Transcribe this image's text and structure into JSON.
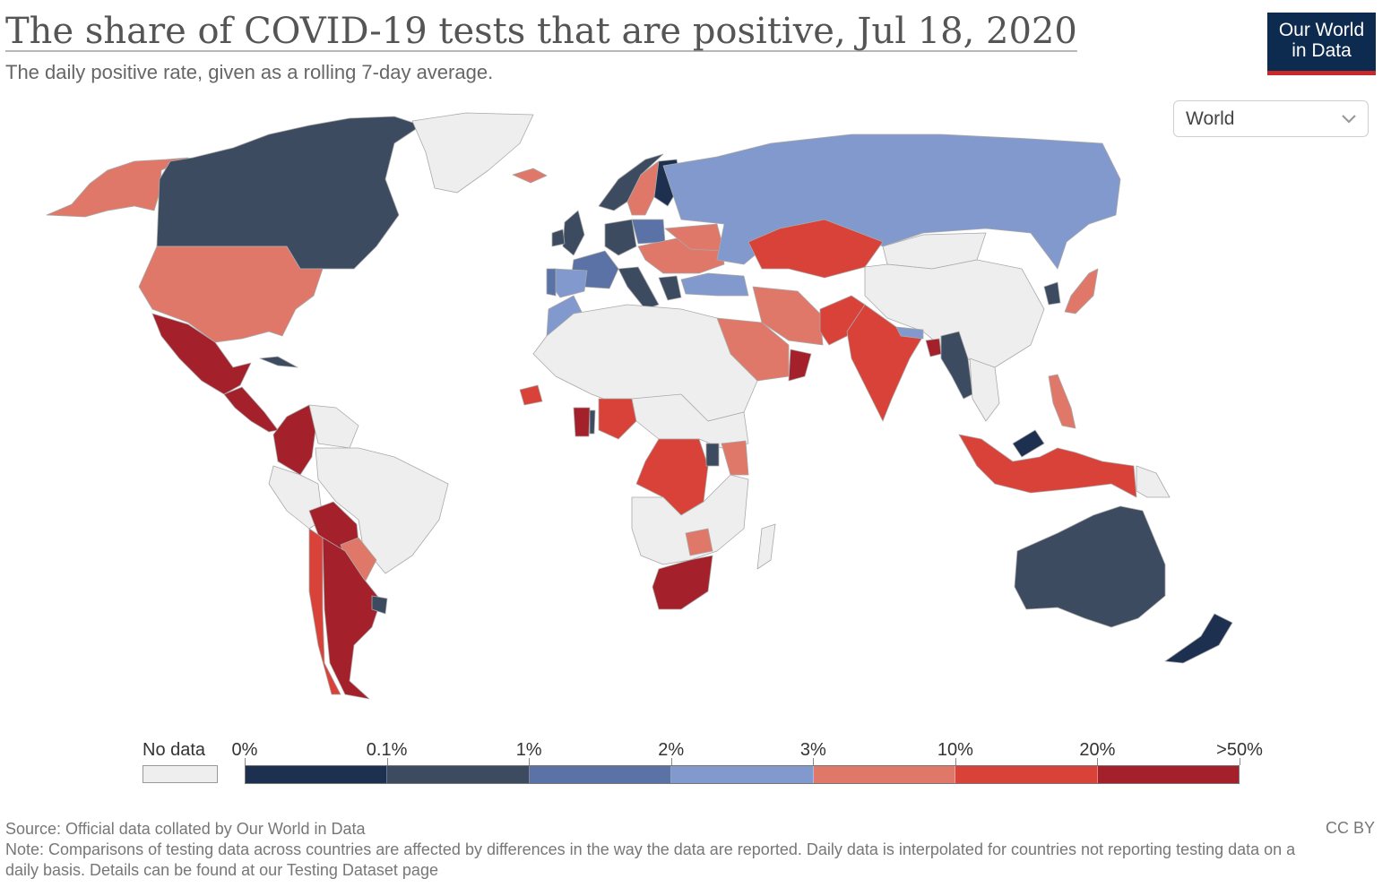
{
  "header": {
    "title": "The share of COVID-19 tests that are positive, Jul 18, 2020",
    "subtitle": "The daily positive rate, given as a rolling 7-day average.",
    "logo_line1": "Our World",
    "logo_line2": "in Data"
  },
  "region_selector": {
    "value": "World"
  },
  "colors": {
    "no_data": "#eeeeee",
    "bins": [
      "#1d3050",
      "#3d4b60",
      "#5a72a6",
      "#8199cc",
      "#e0786a",
      "#d94238",
      "#a4212b"
    ],
    "border": "#a9a9a9"
  },
  "legend": {
    "no_data_label": "No data",
    "ticks": [
      "0%",
      "0.1%",
      "1%",
      "2%",
      "3%",
      "10%",
      "20%",
      ">50%"
    ]
  },
  "map_regions": [
    {
      "name": "Alaska",
      "bin": 4
    },
    {
      "name": "Canada",
      "bin": 1
    },
    {
      "name": "Greenland",
      "bin": -1
    },
    {
      "name": "United States",
      "bin": 4
    },
    {
      "name": "Mexico",
      "bin": 6
    },
    {
      "name": "Cuba",
      "bin": 1
    },
    {
      "name": "Guatemala",
      "bin": 6
    },
    {
      "name": "Colombia",
      "bin": 6
    },
    {
      "name": "Venezuela",
      "bin": -1
    },
    {
      "name": "Brazil",
      "bin": -1
    },
    {
      "name": "Peru",
      "bin": -1
    },
    {
      "name": "Bolivia",
      "bin": 6
    },
    {
      "name": "Paraguay",
      "bin": 4
    },
    {
      "name": "Chile",
      "bin": 5
    },
    {
      "name": "Argentina",
      "bin": 6
    },
    {
      "name": "Uruguay",
      "bin": 1
    },
    {
      "name": "Iceland",
      "bin": 4
    },
    {
      "name": "Norway",
      "bin": 1
    },
    {
      "name": "Sweden",
      "bin": 4
    },
    {
      "name": "Finland",
      "bin": 0
    },
    {
      "name": "United Kingdom",
      "bin": 1
    },
    {
      "name": "Ireland",
      "bin": 1
    },
    {
      "name": "France",
      "bin": 2
    },
    {
      "name": "Spain",
      "bin": 3
    },
    {
      "name": "Portugal",
      "bin": 2
    },
    {
      "name": "Germany",
      "bin": 1
    },
    {
      "name": "Poland",
      "bin": 2
    },
    {
      "name": "Italy",
      "bin": 1
    },
    {
      "name": "Balkans",
      "bin": 4
    },
    {
      "name": "Greece",
      "bin": 1
    },
    {
      "name": "Ukraine",
      "bin": 4
    },
    {
      "name": "Russia",
      "bin": 3
    },
    {
      "name": "Turkey",
      "bin": 3
    },
    {
      "name": "Kazakhstan",
      "bin": 5
    },
    {
      "name": "Mongolia",
      "bin": -1
    },
    {
      "name": "China",
      "bin": -1
    },
    {
      "name": "Korea",
      "bin": 1
    },
    {
      "name": "Japan",
      "bin": 4
    },
    {
      "name": "Iran",
      "bin": 4
    },
    {
      "name": "Saudi Arabia",
      "bin": 4
    },
    {
      "name": "Oman",
      "bin": 6
    },
    {
      "name": "Pakistan",
      "bin": 5
    },
    {
      "name": "India",
      "bin": 5
    },
    {
      "name": "Nepal",
      "bin": 3
    },
    {
      "name": "Bangladesh",
      "bin": 6
    },
    {
      "name": "Myanmar",
      "bin": 1
    },
    {
      "name": "Southeast Asia",
      "bin": -1
    },
    {
      "name": "Philippines",
      "bin": 4
    },
    {
      "name": "Malaysia",
      "bin": 0
    },
    {
      "name": "Indonesia",
      "bin": 5
    },
    {
      "name": "Papua New Guinea",
      "bin": -1
    },
    {
      "name": "Australia",
      "bin": 1
    },
    {
      "name": "New Zealand",
      "bin": 0
    },
    {
      "name": "Morocco",
      "bin": 3
    },
    {
      "name": "North Africa",
      "bin": -1
    },
    {
      "name": "Senegal",
      "bin": 5
    },
    {
      "name": "Ghana",
      "bin": 6
    },
    {
      "name": "Togo",
      "bin": 1
    },
    {
      "name": "Nigeria",
      "bin": 5
    },
    {
      "name": "Central Africa",
      "bin": -1
    },
    {
      "name": "DR Congo",
      "bin": 5
    },
    {
      "name": "Rwanda",
      "bin": 1
    },
    {
      "name": "Kenya",
      "bin": 4
    },
    {
      "name": "Southern Africa",
      "bin": -1
    },
    {
      "name": "Zimbabwe",
      "bin": 4
    },
    {
      "name": "South Africa",
      "bin": 6
    },
    {
      "name": "Madagascar",
      "bin": -1
    }
  ],
  "footer": {
    "source": "Source: Official data collated by Our World in Data",
    "note": "Note: Comparisons of testing data across countries are affected by differences in the way the data are reported. Daily data is interpolated for countries not reporting testing data on a daily basis. Details can be found at our Testing Dataset page",
    "license": "CC BY"
  }
}
